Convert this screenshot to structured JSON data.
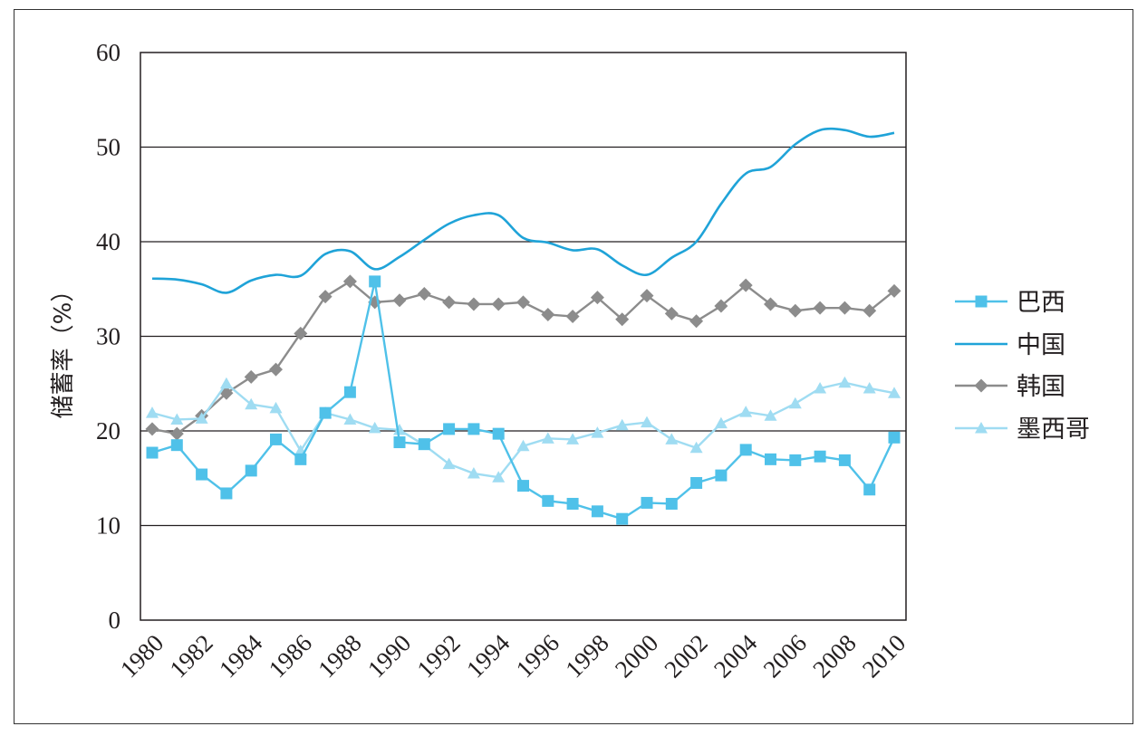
{
  "chart_data": {
    "type": "line",
    "ylabel": "储蓄率（%）",
    "xlabel": "",
    "ylim": [
      0,
      60
    ],
    "yticks": [
      "0",
      "10",
      "20",
      "30",
      "40",
      "50",
      "60"
    ],
    "x": [
      1980,
      1981,
      1982,
      1983,
      1984,
      1985,
      1986,
      1987,
      1988,
      1989,
      1990,
      1991,
      1992,
      1993,
      1994,
      1995,
      1996,
      1997,
      1998,
      1999,
      2000,
      2001,
      2002,
      2003,
      2004,
      2005,
      2006,
      2007,
      2008,
      2009,
      2010
    ],
    "xticks": [
      "1980",
      "1982",
      "1984",
      "1986",
      "1988",
      "1990",
      "1992",
      "1994",
      "1996",
      "1998",
      "2000",
      "2002",
      "2004",
      "2006",
      "2008",
      "2010"
    ],
    "grid": "horizontal",
    "legend_position": "right",
    "series": [
      {
        "name": "巴西",
        "color": "#4fc1e9",
        "marker": "square",
        "values": [
          17.7,
          18.5,
          15.4,
          13.4,
          15.8,
          19.1,
          17.0,
          21.9,
          24.1,
          35.8,
          18.8,
          18.6,
          20.2,
          20.2,
          19.7,
          14.2,
          12.6,
          12.3,
          11.5,
          10.7,
          12.4,
          12.3,
          14.5,
          15.3,
          18.0,
          17.0,
          16.9,
          17.3,
          16.9,
          13.8,
          19.3
        ]
      },
      {
        "name": "中国",
        "color": "#1fa3d8",
        "marker": "none",
        "values": [
          36.1,
          36.0,
          35.5,
          34.6,
          35.9,
          36.5,
          36.4,
          38.7,
          39.0,
          37.1,
          38.4,
          40.2,
          41.9,
          42.8,
          42.8,
          40.4,
          39.9,
          39.1,
          39.2,
          37.5,
          36.5,
          38.3,
          40.0,
          44.0,
          47.2,
          47.9,
          50.3,
          51.8,
          51.8,
          51.1,
          51.5
        ]
      },
      {
        "name": "韩国",
        "color": "#8c8c8c",
        "marker": "diamond",
        "values": [
          20.2,
          19.7,
          21.6,
          24.0,
          25.7,
          26.5,
          30.3,
          34.2,
          35.8,
          33.6,
          33.8,
          34.5,
          33.6,
          33.4,
          33.4,
          33.6,
          32.3,
          32.1,
          34.1,
          31.8,
          34.3,
          32.4,
          31.6,
          33.2,
          35.4,
          33.4,
          32.7,
          33.0,
          33.0,
          32.7,
          34.8
        ]
      },
      {
        "name": "墨西哥",
        "color": "#9fdcf2",
        "marker": "triangle",
        "values": [
          21.9,
          21.2,
          21.3,
          25.0,
          22.8,
          22.4,
          17.9,
          21.9,
          21.2,
          20.3,
          20.1,
          18.5,
          16.5,
          15.5,
          15.1,
          18.4,
          19.2,
          19.1,
          19.8,
          20.6,
          20.9,
          19.1,
          18.2,
          20.8,
          22.0,
          21.6,
          22.9,
          24.5,
          25.1,
          24.5,
          24.0
        ]
      }
    ]
  }
}
